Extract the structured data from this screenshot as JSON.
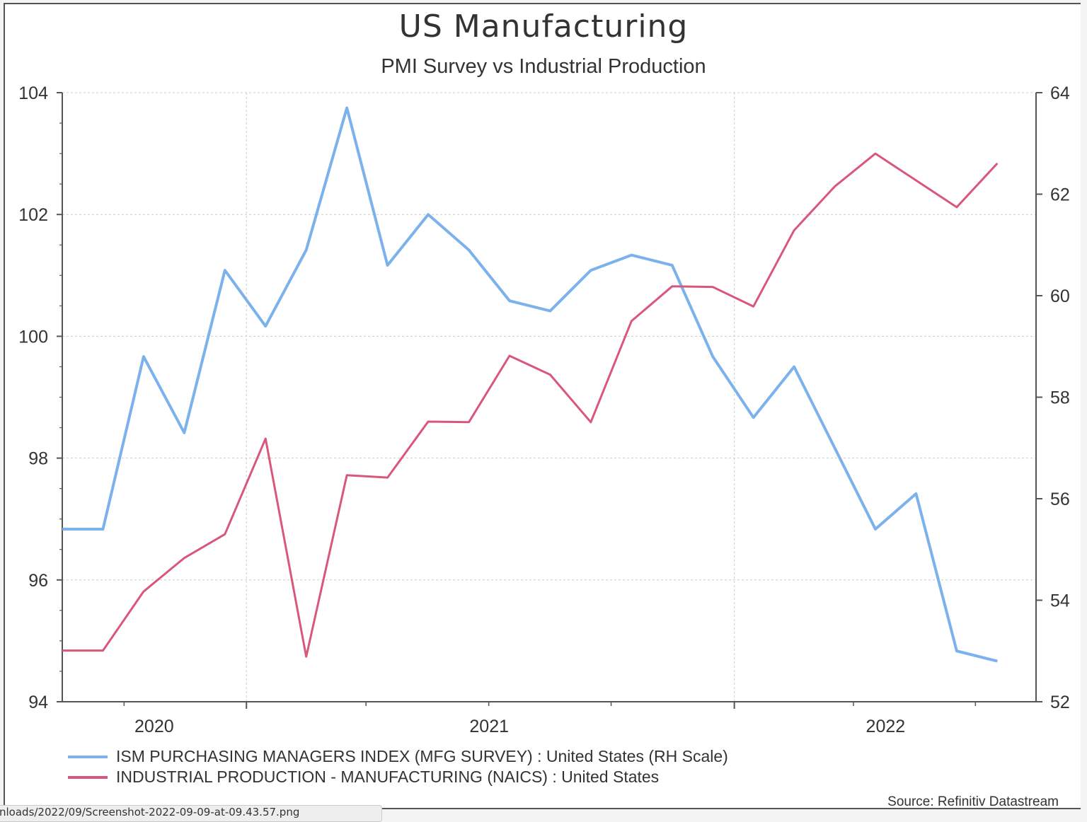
{
  "chart_data": {
    "type": "line",
    "title": "US Manufacturing",
    "subtitle": "PMI Survey vs Industrial Production",
    "x_tick_labels": [
      {
        "label": "2020",
        "index": 2.26
      },
      {
        "label": "2021",
        "index": 10.5
      },
      {
        "label": "2022",
        "index": 20.25
      }
    ],
    "x_gridlines_index": [
      4.53,
      16.53
    ],
    "x_minor_ticks_index": [
      1.52,
      7.47,
      10.49,
      13.5,
      19.46,
      22.46
    ],
    "x_range_index": [
      0,
      24
    ],
    "left_axis": {
      "ylim": [
        94,
        104
      ],
      "ticks": [
        94,
        96,
        98,
        100,
        102,
        104
      ]
    },
    "right_axis": {
      "ylim": [
        52,
        64
      ],
      "ticks": [
        52,
        54,
        56,
        58,
        60,
        62,
        64
      ]
    },
    "grid": true,
    "legend_placement": "bottom-left",
    "series": [
      {
        "name": "ISM PURCHASING MANAGERS INDEX (MFG SURVEY) : United States (RH Scale)",
        "axis": "right",
        "color": "#7cb2ec",
        "values": [
          55.4,
          55.4,
          58.8,
          57.3,
          60.5,
          59.4,
          60.9,
          63.7,
          60.6,
          61.6,
          60.9,
          59.9,
          59.7,
          60.5,
          60.8,
          60.6,
          58.8,
          57.6,
          58.6,
          57.0,
          55.4,
          56.1,
          53.0,
          52.8
        ]
      },
      {
        "name": "INDUSTRIAL PRODUCTION - MANUFACTURING (NAICS) : United States",
        "axis": "left",
        "color": "#d9577a",
        "values": [
          94.84,
          94.84,
          95.81,
          96.36,
          96.75,
          98.32,
          94.74,
          97.72,
          97.68,
          98.6,
          98.59,
          99.68,
          99.37,
          98.59,
          100.25,
          100.82,
          100.81,
          100.49,
          101.74,
          102.46,
          103.0,
          102.56,
          102.12,
          102.84
        ]
      }
    ],
    "source": "Source: Refinitiv Datastream"
  },
  "status_bar": {
    "text": "nloads/2022/09/Screenshot-2022-09-09-at-09.43.57.png"
  }
}
